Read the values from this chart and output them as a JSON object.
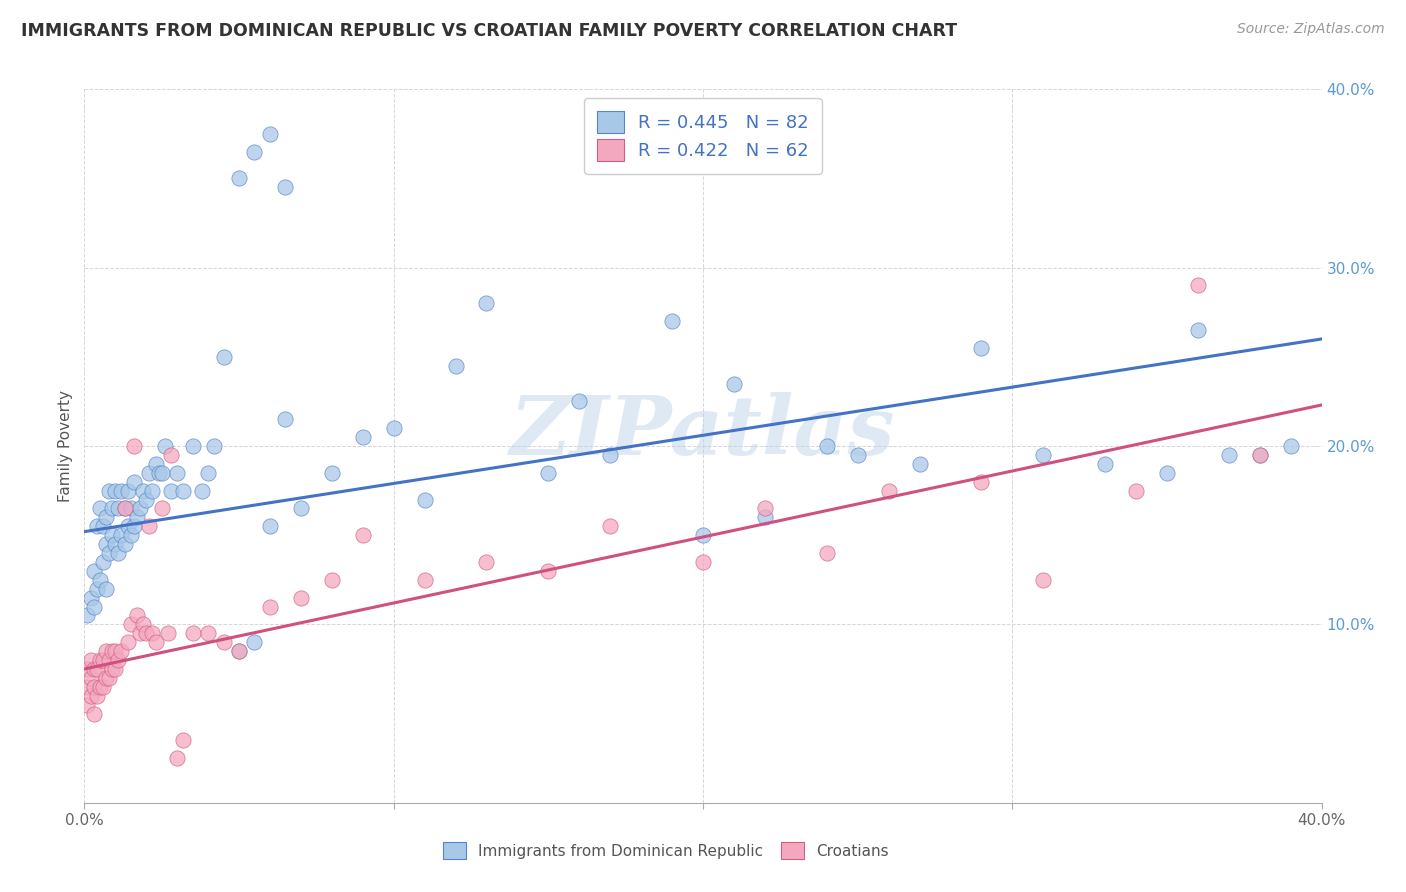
{
  "title": "IMMIGRANTS FROM DOMINICAN REPUBLIC VS CROATIAN FAMILY POVERTY CORRELATION CHART",
  "source": "Source: ZipAtlas.com",
  "ylabel": "Family Poverty",
  "xlim": [
    0.0,
    0.4
  ],
  "ylim": [
    0.0,
    0.4
  ],
  "blue_R": 0.445,
  "blue_N": 82,
  "pink_R": 0.422,
  "pink_N": 62,
  "blue_color": "#a8c8e8",
  "pink_color": "#f4a8c0",
  "blue_edge_color": "#5585c8",
  "pink_edge_color": "#d06080",
  "blue_line_color": "#4472c4",
  "pink_line_color": "#d05080",
  "legend_label_blue": "Immigrants from Dominican Republic",
  "legend_label_pink": "Croatians",
  "watermark": "ZIPatlas",
  "blue_intercept": 0.152,
  "blue_slope": 0.27,
  "pink_intercept": 0.075,
  "pink_slope": 0.37,
  "blue_points_x": [
    0.001,
    0.002,
    0.003,
    0.003,
    0.004,
    0.004,
    0.005,
    0.005,
    0.006,
    0.006,
    0.007,
    0.007,
    0.007,
    0.008,
    0.008,
    0.009,
    0.009,
    0.01,
    0.01,
    0.011,
    0.011,
    0.012,
    0.012,
    0.013,
    0.013,
    0.014,
    0.014,
    0.015,
    0.015,
    0.016,
    0.016,
    0.017,
    0.018,
    0.019,
    0.02,
    0.021,
    0.022,
    0.023,
    0.024,
    0.025,
    0.026,
    0.028,
    0.03,
    0.032,
    0.035,
    0.038,
    0.04,
    0.042,
    0.045,
    0.05,
    0.055,
    0.06,
    0.065,
    0.07,
    0.08,
    0.09,
    0.1,
    0.11,
    0.12,
    0.13,
    0.15,
    0.16,
    0.17,
    0.19,
    0.2,
    0.21,
    0.22,
    0.24,
    0.25,
    0.27,
    0.29,
    0.31,
    0.33,
    0.35,
    0.36,
    0.37,
    0.38,
    0.39,
    0.05,
    0.055,
    0.06,
    0.065
  ],
  "blue_points_y": [
    0.105,
    0.115,
    0.11,
    0.13,
    0.12,
    0.155,
    0.125,
    0.165,
    0.135,
    0.155,
    0.12,
    0.145,
    0.16,
    0.14,
    0.175,
    0.15,
    0.165,
    0.145,
    0.175,
    0.14,
    0.165,
    0.15,
    0.175,
    0.145,
    0.165,
    0.155,
    0.175,
    0.15,
    0.165,
    0.155,
    0.18,
    0.16,
    0.165,
    0.175,
    0.17,
    0.185,
    0.175,
    0.19,
    0.185,
    0.185,
    0.2,
    0.175,
    0.185,
    0.175,
    0.2,
    0.175,
    0.185,
    0.2,
    0.25,
    0.085,
    0.09,
    0.155,
    0.215,
    0.165,
    0.185,
    0.205,
    0.21,
    0.17,
    0.245,
    0.28,
    0.185,
    0.225,
    0.195,
    0.27,
    0.15,
    0.235,
    0.16,
    0.2,
    0.195,
    0.19,
    0.255,
    0.195,
    0.19,
    0.185,
    0.265,
    0.195,
    0.195,
    0.2,
    0.35,
    0.365,
    0.375,
    0.345
  ],
  "pink_points_x": [
    0.001,
    0.001,
    0.001,
    0.002,
    0.002,
    0.002,
    0.003,
    0.003,
    0.003,
    0.004,
    0.004,
    0.005,
    0.005,
    0.006,
    0.006,
    0.007,
    0.007,
    0.008,
    0.008,
    0.009,
    0.009,
    0.01,
    0.01,
    0.011,
    0.012,
    0.013,
    0.014,
    0.015,
    0.016,
    0.017,
    0.018,
    0.019,
    0.02,
    0.021,
    0.022,
    0.023,
    0.025,
    0.027,
    0.03,
    0.032,
    0.035,
    0.04,
    0.045,
    0.05,
    0.06,
    0.07,
    0.08,
    0.09,
    0.11,
    0.13,
    0.15,
    0.17,
    0.2,
    0.22,
    0.24,
    0.26,
    0.29,
    0.31,
    0.34,
    0.36,
    0.38,
    0.028
  ],
  "pink_points_y": [
    0.055,
    0.065,
    0.075,
    0.06,
    0.07,
    0.08,
    0.05,
    0.065,
    0.075,
    0.06,
    0.075,
    0.065,
    0.08,
    0.065,
    0.08,
    0.07,
    0.085,
    0.07,
    0.08,
    0.075,
    0.085,
    0.075,
    0.085,
    0.08,
    0.085,
    0.165,
    0.09,
    0.1,
    0.2,
    0.105,
    0.095,
    0.1,
    0.095,
    0.155,
    0.095,
    0.09,
    0.165,
    0.095,
    0.025,
    0.035,
    0.095,
    0.095,
    0.09,
    0.085,
    0.11,
    0.115,
    0.125,
    0.15,
    0.125,
    0.135,
    0.13,
    0.155,
    0.135,
    0.165,
    0.14,
    0.175,
    0.18,
    0.125,
    0.175,
    0.29,
    0.195,
    0.195
  ]
}
